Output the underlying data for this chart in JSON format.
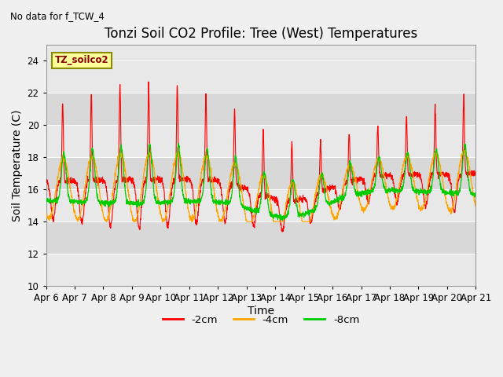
{
  "title": "Tonzi Soil CO2 Profile: Tree (West) Temperatures",
  "subtitle": "No data for f_TCW_4",
  "ylabel": "Soil Temperature (C)",
  "xlabel": "Time",
  "legend_label": "TZ_soilco2",
  "ylim": [
    10,
    25
  ],
  "yticks": [
    10,
    12,
    14,
    16,
    18,
    20,
    22,
    24
  ],
  "line_colors": [
    "#ff0000",
    "#ffa500",
    "#00cc00"
  ],
  "line_labels": [
    "-2cm",
    "-4cm",
    "-8cm"
  ],
  "x_labels": [
    "Apr 6",
    "Apr 7",
    "Apr 8",
    "Apr 9",
    "Apr 10",
    "Apr 11",
    "Apr 12",
    "Apr 13",
    "Apr 14",
    "Apr 15",
    "Apr 16",
    "Apr 17",
    "Apr 18",
    "Apr 19",
    "Apr 20",
    "Apr 21"
  ],
  "title_fontsize": 12,
  "axis_fontsize": 10,
  "tick_fontsize": 8.5,
  "legend_box_color": "#ffff99",
  "legend_box_edge": "#8B8B00",
  "fig_bg": "#f0f0f0",
  "plot_bg": "#e8e8e8",
  "band_light": "#e8e8e8",
  "band_dark": "#d8d8d8"
}
